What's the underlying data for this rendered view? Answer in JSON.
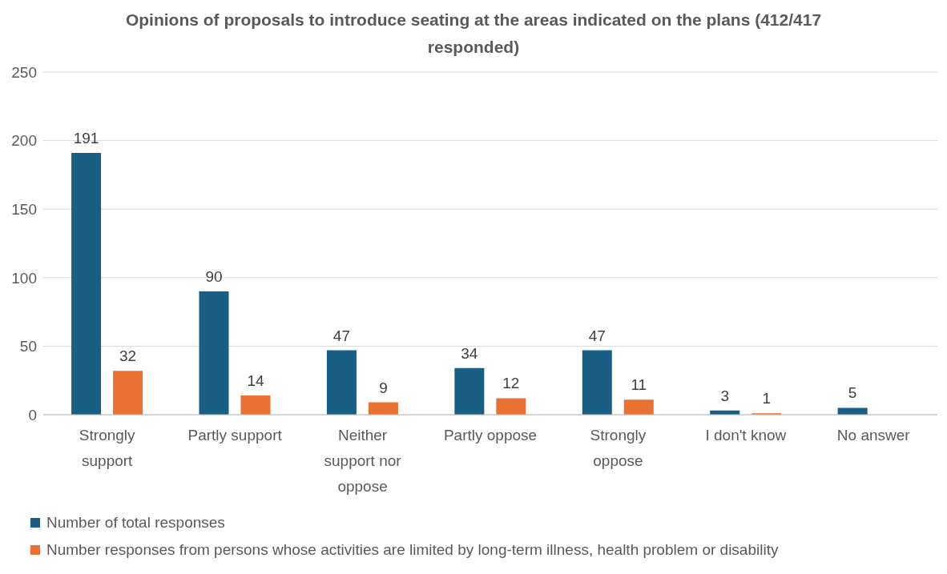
{
  "chart_data": {
    "type": "bar",
    "title": "Opinions of proposals to introduce seating at the areas indicated on the plans (412/417 responded)",
    "categories": [
      "Strongly support",
      "Partly support",
      "Neither support nor oppose",
      "Partly oppose",
      "Strongly oppose",
      "I don't know",
      "No answer"
    ],
    "series": [
      {
        "name": "Number of total responses",
        "color": "#195e83",
        "values": [
          191,
          90,
          47,
          34,
          47,
          3,
          5
        ]
      },
      {
        "name": "Number responses from persons whose activities are limited by long-term illness, health problem or disability",
        "color": "#e97132",
        "values": [
          32,
          14,
          9,
          12,
          11,
          1,
          null
        ]
      }
    ],
    "ylim": [
      0,
      250
    ],
    "yticks": [
      0,
      50,
      100,
      150,
      200,
      250
    ],
    "grid": "y",
    "legend": "bottom left",
    "data_labels": true
  }
}
